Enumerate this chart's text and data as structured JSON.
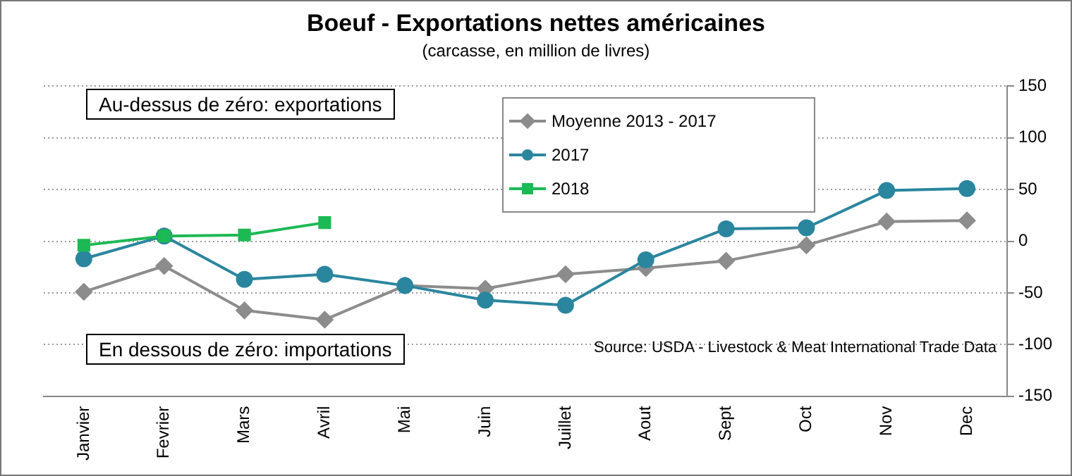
{
  "chart_data": {
    "type": "line",
    "title": "Boeuf - Exportations nettes américaines",
    "subtitle": "(carcasse, en million de livres)",
    "categories": [
      "Janvier",
      "Fevrier",
      "Mars",
      "Avril",
      "Mai",
      "Juin",
      "Juillet",
      "Aout",
      "Sept",
      "Oct",
      "Nov",
      "Dec"
    ],
    "series": [
      {
        "name": "Moyenne 2013 - 2017",
        "color": "#8c8c8c",
        "marker": "diamond",
        "values": [
          -49,
          -24,
          -67,
          -76,
          -43,
          -46,
          -32,
          -26,
          -19,
          -4,
          19,
          20
        ]
      },
      {
        "name": "2017",
        "color": "#2a869e",
        "marker": "circle",
        "values": [
          -17,
          5,
          -37,
          -32,
          -43,
          -57,
          -62,
          -18,
          12,
          13,
          49,
          51
        ]
      },
      {
        "name": "2018",
        "color": "#1db954",
        "marker": "square",
        "values": [
          -4,
          5,
          6,
          18,
          null,
          null,
          null,
          null,
          null,
          null,
          null,
          null
        ]
      }
    ],
    "ylim": [
      -150,
      150
    ],
    "yticks": [
      -150,
      -100,
      -50,
      0,
      50,
      100,
      150
    ],
    "grid": "y",
    "legend": "top",
    "annotations": [
      "Au-dessus de zéro: exportations",
      "En dessous de zéro: importations",
      "Source: USDA - Livestock & Meat International Trade Data"
    ]
  }
}
